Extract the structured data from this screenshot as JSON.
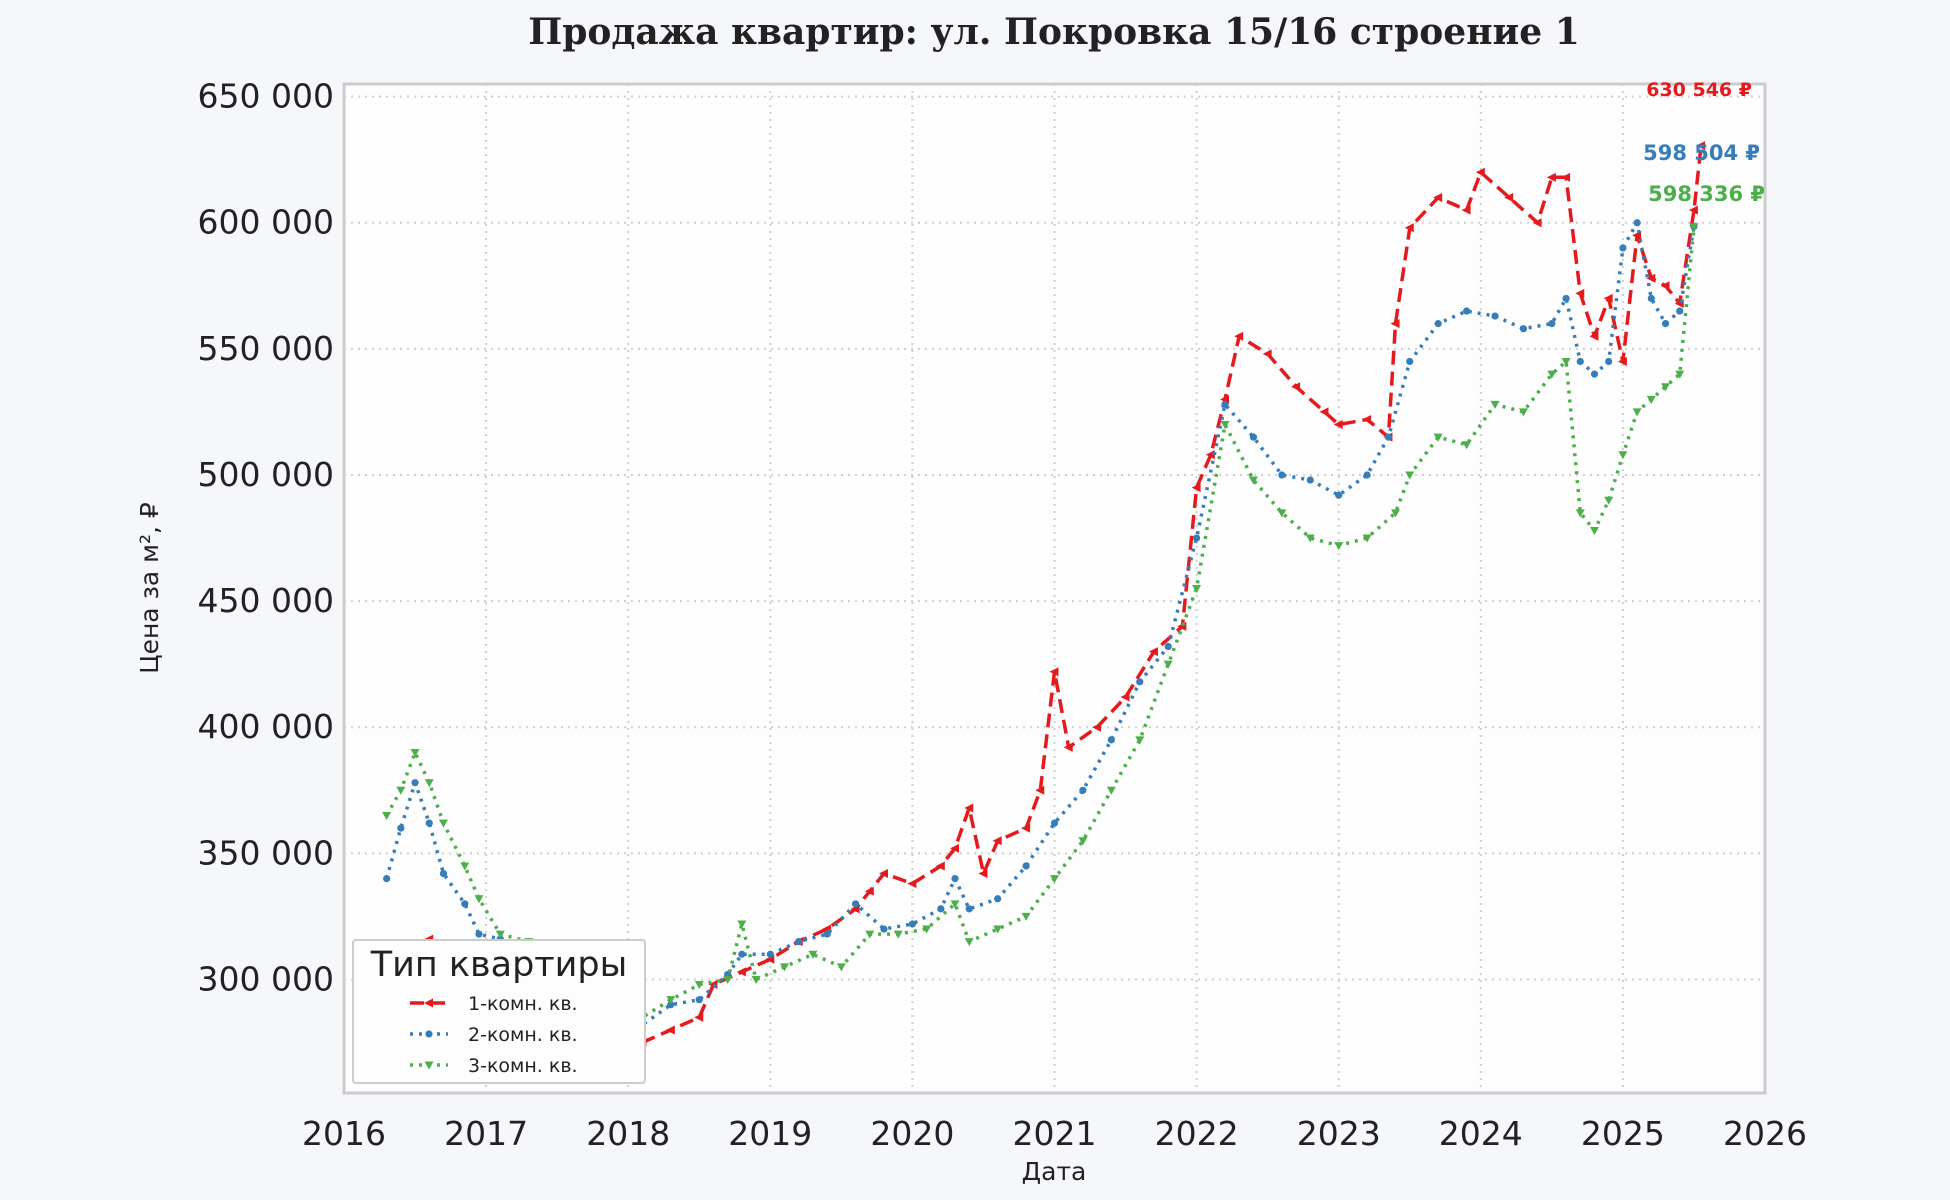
{
  "chart_data": {
    "type": "line",
    "title": "Продажа квартир: ул. Покровка 15/16 строение 1",
    "xlabel": "Дата",
    "ylabel": "Цена за м², ₽",
    "xlim": [
      2016,
      2026
    ],
    "ylim": [
      255000,
      655000
    ],
    "x_ticks": [
      "2016",
      "2017",
      "2018",
      "2019",
      "2020",
      "2021",
      "2022",
      "2023",
      "2024",
      "2025",
      "2026"
    ],
    "y_ticks": [
      "300 000",
      "350 000",
      "400 000",
      "450 000",
      "500 000",
      "550 000",
      "600 000",
      "650 000"
    ],
    "grid": true,
    "legend": {
      "title": "Тип квартиры",
      "placement": "lower-left"
    },
    "series": [
      {
        "name": "1-комн. кв.",
        "color": "#e41a1c",
        "style": "dashed",
        "marker": "left-triangle",
        "end_label": "630 546 ₽",
        "points": [
          [
            2016.4,
            312000
          ],
          [
            2016.6,
            316000
          ],
          [
            2016.8,
            305000
          ],
          [
            2017.0,
            300000
          ],
          [
            2017.3,
            296000
          ],
          [
            2017.6,
            292000
          ],
          [
            2017.9,
            286000
          ],
          [
            2018.1,
            275000
          ],
          [
            2018.3,
            280000
          ],
          [
            2018.5,
            285000
          ],
          [
            2018.6,
            298000
          ],
          [
            2018.8,
            303000
          ],
          [
            2019.0,
            308000
          ],
          [
            2019.2,
            315000
          ],
          [
            2019.4,
            320000
          ],
          [
            2019.6,
            328000
          ],
          [
            2019.7,
            335000
          ],
          [
            2019.8,
            342000
          ],
          [
            2020.0,
            338000
          ],
          [
            2020.2,
            345000
          ],
          [
            2020.3,
            352000
          ],
          [
            2020.4,
            368000
          ],
          [
            2020.5,
            342000
          ],
          [
            2020.6,
            355000
          ],
          [
            2020.8,
            360000
          ],
          [
            2020.9,
            375000
          ],
          [
            2021.0,
            422000
          ],
          [
            2021.1,
            392000
          ],
          [
            2021.3,
            400000
          ],
          [
            2021.5,
            412000
          ],
          [
            2021.7,
            430000
          ],
          [
            2021.9,
            440000
          ],
          [
            2022.0,
            495000
          ],
          [
            2022.1,
            508000
          ],
          [
            2022.2,
            530000
          ],
          [
            2022.3,
            555000
          ],
          [
            2022.5,
            548000
          ],
          [
            2022.7,
            535000
          ],
          [
            2022.9,
            525000
          ],
          [
            2023.0,
            520000
          ],
          [
            2023.2,
            522000
          ],
          [
            2023.35,
            515000
          ],
          [
            2023.4,
            560000
          ],
          [
            2023.5,
            598000
          ],
          [
            2023.7,
            610000
          ],
          [
            2023.9,
            605000
          ],
          [
            2024.0,
            620000
          ],
          [
            2024.2,
            610000
          ],
          [
            2024.4,
            600000
          ],
          [
            2024.5,
            618000
          ],
          [
            2024.6,
            618000
          ],
          [
            2024.7,
            572000
          ],
          [
            2024.8,
            555000
          ],
          [
            2024.9,
            570000
          ],
          [
            2025.0,
            545000
          ],
          [
            2025.1,
            595000
          ],
          [
            2025.2,
            578000
          ],
          [
            2025.3,
            575000
          ],
          [
            2025.4,
            568000
          ],
          [
            2025.5,
            605000
          ],
          [
            2025.55,
            630546
          ]
        ]
      },
      {
        "name": "2-комн. кв.",
        "color": "#377eb8",
        "style": "dotted",
        "marker": "circle",
        "end_label": "598 504 ₽",
        "points": [
          [
            2016.3,
            340000
          ],
          [
            2016.4,
            360000
          ],
          [
            2016.5,
            378000
          ],
          [
            2016.6,
            362000
          ],
          [
            2016.7,
            342000
          ],
          [
            2016.85,
            330000
          ],
          [
            2016.95,
            318000
          ],
          [
            2017.1,
            316000
          ],
          [
            2017.3,
            305000
          ],
          [
            2017.5,
            300000
          ],
          [
            2017.7,
            296000
          ],
          [
            2017.9,
            286000
          ],
          [
            2018.1,
            282000
          ],
          [
            2018.3,
            290000
          ],
          [
            2018.5,
            292000
          ],
          [
            2018.7,
            302000
          ],
          [
            2018.8,
            310000
          ],
          [
            2019.0,
            310000
          ],
          [
            2019.2,
            315000
          ],
          [
            2019.4,
            318000
          ],
          [
            2019.6,
            330000
          ],
          [
            2019.8,
            320000
          ],
          [
            2020.0,
            322000
          ],
          [
            2020.2,
            328000
          ],
          [
            2020.3,
            340000
          ],
          [
            2020.4,
            328000
          ],
          [
            2020.6,
            332000
          ],
          [
            2020.8,
            345000
          ],
          [
            2021.0,
            362000
          ],
          [
            2021.2,
            375000
          ],
          [
            2021.4,
            395000
          ],
          [
            2021.6,
            418000
          ],
          [
            2021.8,
            432000
          ],
          [
            2022.0,
            475000
          ],
          [
            2022.2,
            528000
          ],
          [
            2022.4,
            515000
          ],
          [
            2022.6,
            500000
          ],
          [
            2022.8,
            498000
          ],
          [
            2023.0,
            492000
          ],
          [
            2023.2,
            500000
          ],
          [
            2023.35,
            515000
          ],
          [
            2023.5,
            545000
          ],
          [
            2023.7,
            560000
          ],
          [
            2023.9,
            565000
          ],
          [
            2024.1,
            563000
          ],
          [
            2024.3,
            558000
          ],
          [
            2024.5,
            560000
          ],
          [
            2024.6,
            570000
          ],
          [
            2024.7,
            545000
          ],
          [
            2024.8,
            540000
          ],
          [
            2024.9,
            545000
          ],
          [
            2025.0,
            590000
          ],
          [
            2025.1,
            600000
          ],
          [
            2025.2,
            570000
          ],
          [
            2025.3,
            560000
          ],
          [
            2025.4,
            565000
          ],
          [
            2025.5,
            598504
          ]
        ]
      },
      {
        "name": "3-комн. кв.",
        "color": "#4daf4a",
        "style": "dotted",
        "marker": "down-triangle",
        "end_label": "598 336 ₽",
        "points": [
          [
            2016.3,
            365000
          ],
          [
            2016.4,
            375000
          ],
          [
            2016.5,
            390000
          ],
          [
            2016.6,
            378000
          ],
          [
            2016.7,
            362000
          ],
          [
            2016.85,
            345000
          ],
          [
            2016.95,
            332000
          ],
          [
            2017.1,
            318000
          ],
          [
            2017.3,
            315000
          ],
          [
            2017.5,
            310000
          ],
          [
            2017.7,
            300000
          ],
          [
            2017.9,
            290000
          ],
          [
            2018.1,
            285000
          ],
          [
            2018.3,
            292000
          ],
          [
            2018.5,
            298000
          ],
          [
            2018.7,
            300000
          ],
          [
            2018.8,
            322000
          ],
          [
            2018.9,
            300000
          ],
          [
            2019.1,
            305000
          ],
          [
            2019.3,
            310000
          ],
          [
            2019.5,
            305000
          ],
          [
            2019.7,
            318000
          ],
          [
            2019.9,
            318000
          ],
          [
            2020.1,
            320000
          ],
          [
            2020.3,
            330000
          ],
          [
            2020.4,
            315000
          ],
          [
            2020.6,
            320000
          ],
          [
            2020.8,
            325000
          ],
          [
            2021.0,
            340000
          ],
          [
            2021.2,
            355000
          ],
          [
            2021.4,
            375000
          ],
          [
            2021.6,
            395000
          ],
          [
            2021.8,
            425000
          ],
          [
            2022.0,
            455000
          ],
          [
            2022.2,
            520000
          ],
          [
            2022.4,
            498000
          ],
          [
            2022.6,
            485000
          ],
          [
            2022.8,
            475000
          ],
          [
            2023.0,
            472000
          ],
          [
            2023.2,
            475000
          ],
          [
            2023.4,
            485000
          ],
          [
            2023.5,
            500000
          ],
          [
            2023.7,
            515000
          ],
          [
            2023.9,
            512000
          ],
          [
            2024.1,
            528000
          ],
          [
            2024.3,
            525000
          ],
          [
            2024.5,
            540000
          ],
          [
            2024.6,
            545000
          ],
          [
            2024.7,
            485000
          ],
          [
            2024.8,
            478000
          ],
          [
            2024.9,
            490000
          ],
          [
            2025.0,
            508000
          ],
          [
            2025.1,
            525000
          ],
          [
            2025.2,
            530000
          ],
          [
            2025.3,
            535000
          ],
          [
            2025.4,
            540000
          ],
          [
            2025.5,
            598336
          ]
        ]
      }
    ]
  }
}
